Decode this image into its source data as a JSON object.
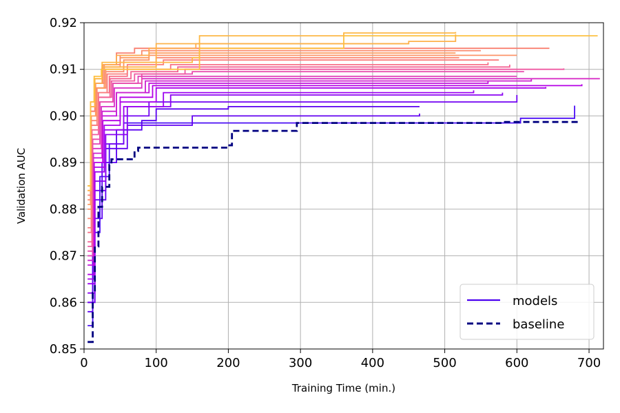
{
  "chart_data": {
    "type": "line",
    "title": "",
    "xlabel": "Training Time (min.)",
    "ylabel": "Validation AUC",
    "xlim": [
      0,
      720
    ],
    "ylim": [
      0.85,
      0.92
    ],
    "xticks": [
      0,
      100,
      200,
      300,
      400,
      500,
      600,
      700
    ],
    "yticks": [
      0.85,
      0.86,
      0.87,
      0.88,
      0.89,
      0.9,
      0.91,
      0.92
    ],
    "xtick_labels": [
      "0",
      "100",
      "200",
      "300",
      "400",
      "500",
      "600",
      "700"
    ],
    "ytick_labels": [
      "0.85",
      "0.86",
      "0.87",
      "0.88",
      "0.89",
      "0.90",
      "0.91",
      "0.92"
    ],
    "grid": true,
    "legend_position": "bottom-right",
    "legend": [
      {
        "label": "models",
        "color": "#4a00f0",
        "style": "solid"
      },
      {
        "label": "baseline",
        "color": "#000080",
        "style": "dashed"
      }
    ],
    "colormap": [
      "#0d0887",
      "#5b00f0",
      "#9b00f0",
      "#d020d0",
      "#f050a0",
      "#fb8670",
      "#fdb44c",
      "#fde24a"
    ],
    "series": [
      {
        "name": "baseline",
        "color": "#000080",
        "dash": true,
        "points": [
          [
            5,
            0.8515
          ],
          [
            10,
            0.8515
          ],
          [
            12,
            0.862
          ],
          [
            15,
            0.872
          ],
          [
            20,
            0.8805
          ],
          [
            25,
            0.8848
          ],
          [
            32,
            0.8848
          ],
          [
            35,
            0.8895
          ],
          [
            38,
            0.8907
          ],
          [
            65,
            0.8907
          ],
          [
            70,
            0.8925
          ],
          [
            75,
            0.8932
          ],
          [
            190,
            0.8932
          ],
          [
            200,
            0.8937
          ],
          [
            205,
            0.8968
          ],
          [
            290,
            0.8968
          ],
          [
            295,
            0.8985
          ],
          [
            570,
            0.8985
          ],
          [
            580,
            0.8987
          ],
          [
            685,
            0.8987
          ]
        ]
      },
      {
        "color": "#4a0cf5",
        "points": [
          [
            5,
            0.855
          ],
          [
            12,
            0.875
          ],
          [
            22,
            0.887
          ],
          [
            35,
            0.894
          ],
          [
            55,
            0.8985
          ],
          [
            600,
            0.8985
          ],
          [
            605,
            0.8995
          ],
          [
            680,
            0.9022
          ]
        ]
      },
      {
        "color": "#5a00f0",
        "points": [
          [
            5,
            0.858
          ],
          [
            12,
            0.878
          ],
          [
            25,
            0.89
          ],
          [
            45,
            0.897
          ],
          [
            80,
            0.899
          ],
          [
            100,
            0.9015
          ],
          [
            200,
            0.902
          ],
          [
            465,
            0.902
          ]
        ]
      },
      {
        "color": "#6200f0",
        "points": [
          [
            5,
            0.86
          ],
          [
            15,
            0.882
          ],
          [
            30,
            0.893
          ],
          [
            60,
            0.898
          ],
          [
            150,
            0.9
          ],
          [
            465,
            0.9005
          ]
        ]
      },
      {
        "color": "#7000f2",
        "points": [
          [
            5,
            0.86
          ],
          [
            15,
            0.884
          ],
          [
            30,
            0.894
          ],
          [
            55,
            0.9
          ],
          [
            90,
            0.903
          ],
          [
            600,
            0.9045
          ]
        ]
      },
      {
        "color": "#8a00f2",
        "points": [
          [
            5,
            0.862
          ],
          [
            15,
            0.886
          ],
          [
            30,
            0.896
          ],
          [
            60,
            0.902
          ],
          [
            120,
            0.9045
          ],
          [
            580,
            0.905
          ]
        ]
      },
      {
        "color": "#9a00f0",
        "points": [
          [
            5,
            0.864
          ],
          [
            15,
            0.888
          ],
          [
            28,
            0.897
          ],
          [
            55,
            0.902
          ],
          [
            110,
            0.905
          ],
          [
            540,
            0.9055
          ]
        ]
      },
      {
        "color": "#a800ec",
        "points": [
          [
            5,
            0.865
          ],
          [
            14,
            0.889
          ],
          [
            28,
            0.898
          ],
          [
            50,
            0.903
          ],
          [
            100,
            0.906
          ],
          [
            640,
            0.9062
          ]
        ]
      },
      {
        "color": "#b500e6",
        "points": [
          [
            5,
            0.866
          ],
          [
            14,
            0.89
          ],
          [
            26,
            0.899
          ],
          [
            50,
            0.904
          ],
          [
            95,
            0.9065
          ],
          [
            690,
            0.9068
          ]
        ]
      },
      {
        "color": "#c010dc",
        "points": [
          [
            5,
            0.868
          ],
          [
            13,
            0.891
          ],
          [
            25,
            0.9
          ],
          [
            45,
            0.905
          ],
          [
            90,
            0.907
          ],
          [
            560,
            0.9075
          ]
        ]
      },
      {
        "color": "#cc20d0",
        "points": [
          [
            5,
            0.869
          ],
          [
            13,
            0.892
          ],
          [
            25,
            0.901
          ],
          [
            45,
            0.905
          ],
          [
            85,
            0.9075
          ],
          [
            620,
            0.908
          ]
        ]
      },
      {
        "color": "#d830c6",
        "points": [
          [
            5,
            0.87
          ],
          [
            12,
            0.893
          ],
          [
            24,
            0.902
          ],
          [
            42,
            0.906
          ],
          [
            80,
            0.908
          ],
          [
            715,
            0.908
          ]
        ]
      },
      {
        "color": "#e040b8",
        "points": [
          [
            5,
            0.87
          ],
          [
            12,
            0.894
          ],
          [
            22,
            0.903
          ],
          [
            40,
            0.907
          ],
          [
            75,
            0.9085
          ],
          [
            600,
            0.9085
          ]
        ]
      },
      {
        "color": "#e84cac",
        "points": [
          [
            5,
            0.871
          ],
          [
            12,
            0.895
          ],
          [
            22,
            0.903
          ],
          [
            40,
            0.907
          ],
          [
            80,
            0.909
          ],
          [
            150,
            0.9095
          ],
          [
            610,
            0.9095
          ]
        ]
      },
      {
        "color": "#ef58a0",
        "points": [
          [
            5,
            0.872
          ],
          [
            11,
            0.896
          ],
          [
            20,
            0.904
          ],
          [
            38,
            0.9075
          ],
          [
            70,
            0.909
          ],
          [
            140,
            0.91
          ],
          [
            665,
            0.9102
          ]
        ]
      },
      {
        "color": "#f36494",
        "points": [
          [
            5,
            0.873
          ],
          [
            11,
            0.897
          ],
          [
            20,
            0.904
          ],
          [
            36,
            0.908
          ],
          [
            65,
            0.9095
          ],
          [
            130,
            0.9105
          ],
          [
            590,
            0.911
          ]
        ]
      },
      {
        "color": "#f77088",
        "points": [
          [
            5,
            0.875
          ],
          [
            10,
            0.898
          ],
          [
            20,
            0.905
          ],
          [
            35,
            0.9085
          ],
          [
            60,
            0.91
          ],
          [
            120,
            0.911
          ],
          [
            560,
            0.9115
          ]
        ]
      },
      {
        "color": "#fa7c7c",
        "points": [
          [
            5,
            0.876
          ],
          [
            10,
            0.898
          ],
          [
            18,
            0.905
          ],
          [
            32,
            0.909
          ],
          [
            60,
            0.911
          ],
          [
            110,
            0.912
          ],
          [
            575,
            0.912
          ]
        ]
      },
      {
        "color": "#fb8872",
        "points": [
          [
            5,
            0.878
          ],
          [
            10,
            0.899
          ],
          [
            18,
            0.906
          ],
          [
            30,
            0.9095
          ],
          [
            55,
            0.9115
          ],
          [
            100,
            0.9125
          ],
          [
            520,
            0.9125
          ]
        ]
      },
      {
        "color": "#fc9468",
        "points": [
          [
            5,
            0.88
          ],
          [
            10,
            0.9
          ],
          [
            17,
            0.906
          ],
          [
            30,
            0.91
          ],
          [
            55,
            0.912
          ],
          [
            90,
            0.913
          ],
          [
            600,
            0.913
          ]
        ]
      },
      {
        "color": "#fd9c60",
        "points": [
          [
            5,
            0.881
          ],
          [
            9,
            0.9
          ],
          [
            16,
            0.906
          ],
          [
            28,
            0.9105
          ],
          [
            50,
            0.9125
          ],
          [
            90,
            0.9135
          ],
          [
            515,
            0.9135
          ]
        ]
      },
      {
        "color": "#fb8a6c",
        "points": [
          [
            5,
            0.882
          ],
          [
            9,
            0.901
          ],
          [
            16,
            0.907
          ],
          [
            28,
            0.911
          ],
          [
            50,
            0.913
          ],
          [
            80,
            0.914
          ],
          [
            550,
            0.914
          ]
        ]
      },
      {
        "color": "#f98070",
        "points": [
          [
            5,
            0.883
          ],
          [
            9,
            0.901
          ],
          [
            15,
            0.907
          ],
          [
            26,
            0.911
          ],
          [
            45,
            0.9135
          ],
          [
            70,
            0.9145
          ],
          [
            645,
            0.9145
          ]
        ]
      },
      {
        "color": "#fdaa50",
        "points": [
          [
            5,
            0.884
          ],
          [
            9,
            0.902
          ],
          [
            15,
            0.907
          ],
          [
            25,
            0.911
          ],
          [
            45,
            0.913
          ],
          [
            90,
            0.9145
          ],
          [
            150,
            0.9145
          ],
          [
            155,
            0.9155
          ],
          [
            450,
            0.9155
          ]
        ]
      },
      {
        "color": "#fdb24a",
        "points": [
          [
            5,
            0.884
          ],
          [
            9,
            0.902
          ],
          [
            15,
            0.908
          ],
          [
            25,
            0.9105
          ],
          [
            100,
            0.9155
          ],
          [
            450,
            0.916
          ],
          [
            515,
            0.9175
          ]
        ]
      },
      {
        "color": "#fdb846",
        "points": [
          [
            5,
            0.885
          ],
          [
            9,
            0.903
          ],
          [
            14,
            0.908
          ],
          [
            25,
            0.9115
          ],
          [
            150,
            0.9125
          ],
          [
            160,
            0.9172
          ],
          [
            355,
            0.9172
          ],
          [
            360,
            0.9178
          ],
          [
            515,
            0.918
          ]
        ]
      },
      {
        "color": "#fdc040",
        "points": [
          [
            5,
            0.885
          ],
          [
            9,
            0.903
          ],
          [
            14,
            0.9085
          ],
          [
            24,
            0.91
          ],
          [
            140,
            0.91
          ],
          [
            160,
            0.9145
          ],
          [
            355,
            0.9145
          ],
          [
            360,
            0.9172
          ],
          [
            712,
            0.9172
          ]
        ]
      }
    ]
  }
}
